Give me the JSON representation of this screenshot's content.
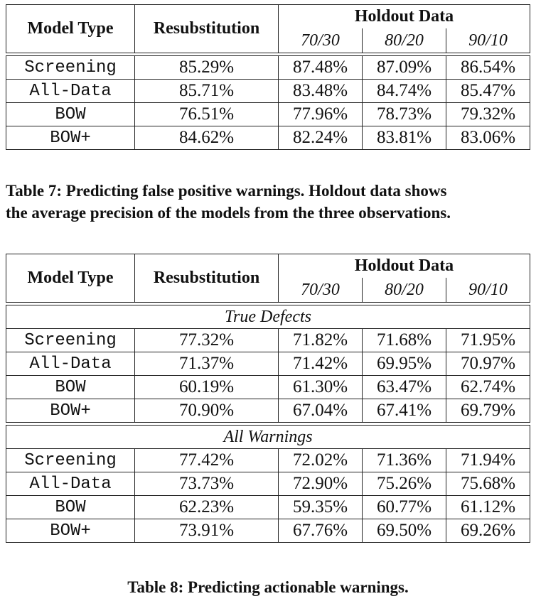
{
  "table7": {
    "headers": {
      "model_type": "Model Type",
      "resubstitution": "Resubstitution",
      "holdout": "Holdout Data",
      "splits": [
        "70/30",
        "80/20",
        "90/10"
      ]
    },
    "rows": [
      {
        "model": "Screening",
        "resub": "85.29%",
        "h7030": "87.48%",
        "h8020": "87.09%",
        "h9010": "86.54%"
      },
      {
        "model": "All-Data",
        "resub": "85.71%",
        "h7030": "83.48%",
        "h8020": "84.74%",
        "h9010": "85.47%"
      },
      {
        "model": "BOW",
        "resub": "76.51%",
        "h7030": "77.96%",
        "h8020": "78.73%",
        "h9010": "79.32%"
      },
      {
        "model": "BOW+",
        "resub": "84.62%",
        "h7030": "82.24%",
        "h8020": "83.81%",
        "h9010": "83.06%"
      }
    ],
    "caption_line1": "Table 7:  Predicting false positive warnings.  Holdout data shows",
    "caption_line2": "the average precision of the models from the three observations."
  },
  "table8": {
    "headers": {
      "model_type": "Model Type",
      "resubstitution": "Resubstitution",
      "holdout": "Holdout Data",
      "splits": [
        "70/30",
        "80/20",
        "90/10"
      ]
    },
    "groups": [
      {
        "title": "True Defects",
        "rows": [
          {
            "model": "Screening",
            "resub": "77.32%",
            "h7030": "71.82%",
            "h8020": "71.68%",
            "h9010": "71.95%"
          },
          {
            "model": "All-Data",
            "resub": "71.37%",
            "h7030": "71.42%",
            "h8020": "69.95%",
            "h9010": "70.97%"
          },
          {
            "model": "BOW",
            "resub": "60.19%",
            "h7030": "61.30%",
            "h8020": "63.47%",
            "h9010": "62.74%"
          },
          {
            "model": "BOW+",
            "resub": "70.90%",
            "h7030": "67.04%",
            "h8020": "67.41%",
            "h9010": "69.79%"
          }
        ]
      },
      {
        "title": "All Warnings",
        "rows": [
          {
            "model": "Screening",
            "resub": "77.42%",
            "h7030": "72.02%",
            "h8020": "71.36%",
            "h9010": "71.94%"
          },
          {
            "model": "All-Data",
            "resub": "73.73%",
            "h7030": "72.90%",
            "h8020": "75.26%",
            "h9010": "75.68%"
          },
          {
            "model": "BOW",
            "resub": "62.23%",
            "h7030": "59.35%",
            "h8020": "60.77%",
            "h9010": "61.12%"
          },
          {
            "model": "BOW+",
            "resub": "73.91%",
            "h7030": "67.76%",
            "h8020": "69.50%",
            "h9010": "69.26%"
          }
        ]
      }
    ],
    "caption": "Table 8:  Predicting actionable warnings."
  }
}
